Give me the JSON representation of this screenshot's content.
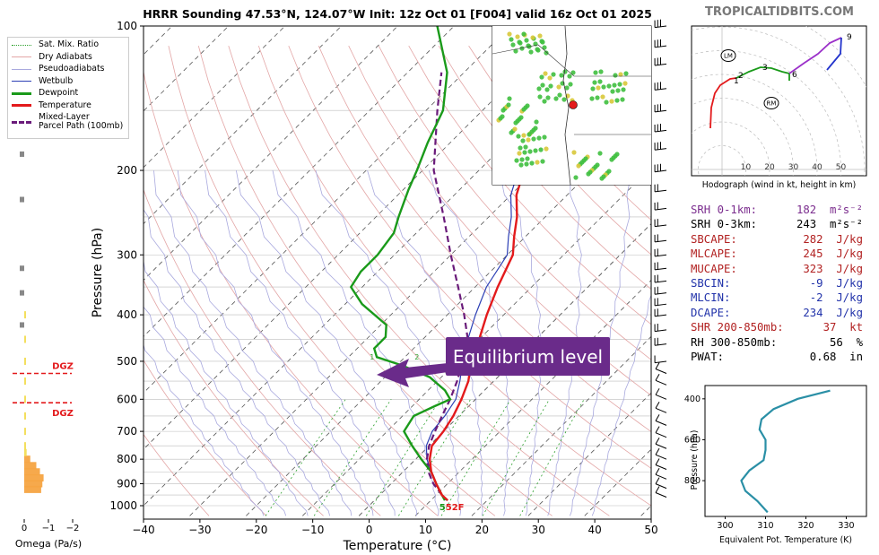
{
  "site": "TROPICALTIDBITS.COM",
  "chart_data": [
    {
      "type": "line",
      "subtype": "skew-t",
      "title": "HRRR Sounding 47.53°N, 124.07°W Init: 12z Oct 01 [F004] valid 16z Oct 01 2025",
      "xlabel": "Temperature (°C)",
      "ylabel": "Pressure (hPa)",
      "xlim": [
        -40,
        50
      ],
      "ylim": [
        1000,
        100
      ],
      "x_ticks": [
        "−40",
        "−30",
        "−20",
        "−10",
        "0",
        "10",
        "20",
        "30",
        "40",
        "50"
      ],
      "y_ticks": [
        "100",
        "200",
        "300",
        "400",
        "500",
        "600",
        "700",
        "800",
        "900",
        "1000"
      ],
      "y_scale": "log",
      "colors": {
        "temperature": "#e31a1c",
        "dewpoint": "#1a9a1a",
        "wetbulb": "#2c3fb5",
        "parcel": "#6a1b7a"
      },
      "series": [
        {
          "name": "Temperature",
          "p": [
            975,
            950,
            900,
            850,
            800,
            750,
            700,
            650,
            600,
            550,
            500,
            450,
            400,
            350,
            300,
            275,
            250,
            225,
            200,
            175,
            150,
            125,
            110,
            100
          ],
          "t": [
            13,
            11,
            8,
            5,
            2.5,
            0.5,
            0,
            -1,
            -2.5,
            -4.5,
            -7.5,
            -10,
            -13,
            -16,
            -19,
            -22,
            -25,
            -29,
            -32,
            -37,
            -42,
            -49,
            -54,
            -57
          ]
        },
        {
          "name": "Dewpoint",
          "p": [
            975,
            950,
            900,
            850,
            800,
            750,
            700,
            650,
            620,
            600,
            575,
            540,
            510,
            490,
            470,
            445,
            420,
            380,
            350,
            325,
            300,
            270,
            250,
            220,
            200,
            175,
            150,
            125,
            100
          ],
          "t": [
            12.5,
            11,
            8,
            5,
            1,
            -3,
            -7,
            -8,
            -6,
            -4.5,
            -7,
            -12,
            -19,
            -25,
            -27,
            -27,
            -29,
            -37,
            -42,
            -43,
            -43,
            -44,
            -46,
            -49,
            -51,
            -54,
            -57,
            -63,
            -73
          ]
        },
        {
          "name": "Wetbulb",
          "p": [
            975,
            950,
            900,
            850,
            800,
            750,
            700,
            650,
            600,
            550,
            500,
            450,
            400,
            350,
            300,
            275,
            250,
            225,
            200,
            175,
            150,
            125,
            110,
            100
          ],
          "t": [
            12.8,
            11,
            8,
            5,
            2,
            -0.5,
            -2,
            -2.5,
            -3.5,
            -6,
            -9,
            -12,
            -15,
            -18,
            -20,
            -23,
            -26,
            -30,
            -33,
            -38,
            -43,
            -50,
            -55,
            -58
          ]
        },
        {
          "name": "Mixed-Layer Parcel Path (100mb)",
          "p": [
            950,
            900,
            850,
            800,
            750,
            700,
            650,
            600,
            550,
            500,
            450,
            400,
            350,
            300,
            250,
            200,
            150,
            125
          ],
          "t": [
            11,
            7.5,
            4.5,
            2,
            0,
            -1.5,
            -3,
            -4.5,
            -6.5,
            -9,
            -12,
            -17,
            -23,
            -30,
            -38,
            -48,
            -58,
            -64
          ]
        }
      ],
      "annotations": [
        "5",
        "5",
        "2",
        "F"
      ],
      "legend": [
        "Sat. Mix. Ratio",
        "Dry Adiabats",
        "Pseudoadiabats",
        "Wetbulb",
        "Dewpoint",
        "Temperature",
        "Mixed-Layer\nParcel Path (100mb)"
      ],
      "mixing_ratio_labels": [
        "1",
        "2",
        "4",
        "6"
      ]
    },
    {
      "type": "bar",
      "subtype": "omega-profile",
      "xlabel": "Omega (Pa/s)",
      "x_ticks": [
        "0",
        "−1",
        "−2"
      ],
      "dgz_labels": [
        "DGZ",
        "DGZ"
      ],
      "dgz_pressures": [
        530,
        610
      ]
    },
    {
      "type": "line",
      "subtype": "hodograph",
      "xlabel": "Hodograph (wind in kt, height in km)",
      "ring_labels": [
        "10",
        "20",
        "30",
        "40",
        "50"
      ],
      "height_labels": [
        "1",
        "2",
        "3",
        "6",
        "9"
      ],
      "markers": [
        "LM",
        "RM"
      ]
    },
    {
      "type": "line",
      "subtype": "theta-e",
      "xlabel": "Equivalent Pot. Temperature (K)",
      "ylabel": "Pressure (hPa)",
      "x_ticks": [
        "300",
        "310",
        "320",
        "330"
      ],
      "y_ticks": [
        "400",
        "600",
        "800"
      ],
      "series": [
        {
          "p": [
            955,
            900,
            850,
            800,
            750,
            700,
            650,
            600,
            550,
            500,
            450,
            400,
            360
          ],
          "theta_e": [
            310.5,
            308,
            305,
            304,
            306,
            309.5,
            310,
            310,
            308.5,
            309,
            312,
            318,
            326
          ]
        }
      ]
    }
  ],
  "stats": [
    {
      "label": "SRH 0-1km:",
      "value": "182",
      "unit": "m²s⁻²",
      "color": "#7b2d8e"
    },
    {
      "label": "SRH 0-3km:",
      "value": "243",
      "unit": "m²s⁻²",
      "color": "#000000"
    },
    {
      "label": "SBCAPE:",
      "value": "282",
      "unit": "J/kg",
      "color": "#b22222"
    },
    {
      "label": "MLCAPE:",
      "value": "245",
      "unit": "J/kg",
      "color": "#b22222"
    },
    {
      "label": "MUCAPE:",
      "value": "323",
      "unit": "J/kg",
      "color": "#b22222"
    },
    {
      "label": "SBCIN:",
      "value": "-9",
      "unit": "J/kg",
      "color": "#2233aa"
    },
    {
      "label": "MLCIN:",
      "value": "-2",
      "unit": "J/kg",
      "color": "#2233aa"
    },
    {
      "label": "DCAPE:",
      "value": "234",
      "unit": "J/kg",
      "color": "#2233aa"
    },
    {
      "label": "SHR 200-850mb:",
      "value": "37",
      "unit": "kt",
      "color": "#b22222"
    },
    {
      "label": "RH 300-850mb:",
      "value": "56",
      "unit": "%",
      "color": "#000000"
    },
    {
      "label": "PWAT:",
      "value": "0.68",
      "unit": "in",
      "color": "#000000"
    }
  ],
  "callout": "Equilibrium level"
}
